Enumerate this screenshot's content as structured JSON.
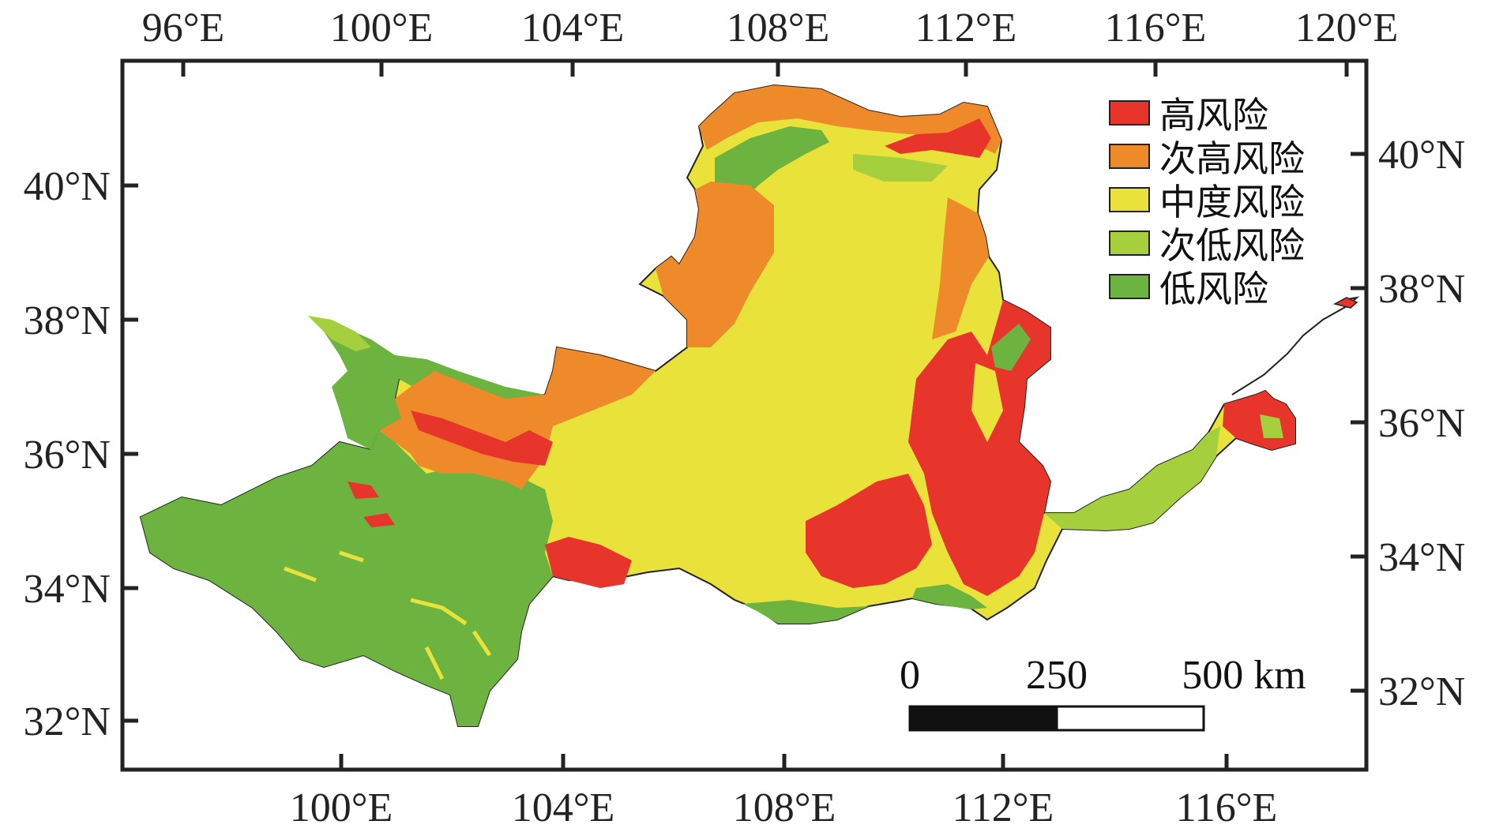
{
  "map": {
    "axes": {
      "top_labels": [
        "96°E",
        "100°E",
        "104°E",
        "108°E",
        "112°E",
        "116°E",
        "120°E"
      ],
      "bottom_labels": [
        "100°E",
        "104°E",
        "108°E",
        "112°E",
        "116°E"
      ],
      "left_labels": [
        "40°N",
        "38°N",
        "36°N",
        "34°N",
        "32°N"
      ],
      "right_labels": [
        "40°N",
        "38°N",
        "36°N",
        "34°N",
        "32°N"
      ]
    },
    "legend": [
      {
        "label": "高风险",
        "color": "#e8352b"
      },
      {
        "label": "次高风险",
        "color": "#ef8a2a"
      },
      {
        "label": "中度风险",
        "color": "#e8e23a"
      },
      {
        "label": "次低风险",
        "color": "#a6cf3e"
      },
      {
        "label": "低风险",
        "color": "#6db33f"
      }
    ],
    "scale_bar": {
      "labels": [
        "0",
        "250",
        "500 km"
      ]
    }
  }
}
